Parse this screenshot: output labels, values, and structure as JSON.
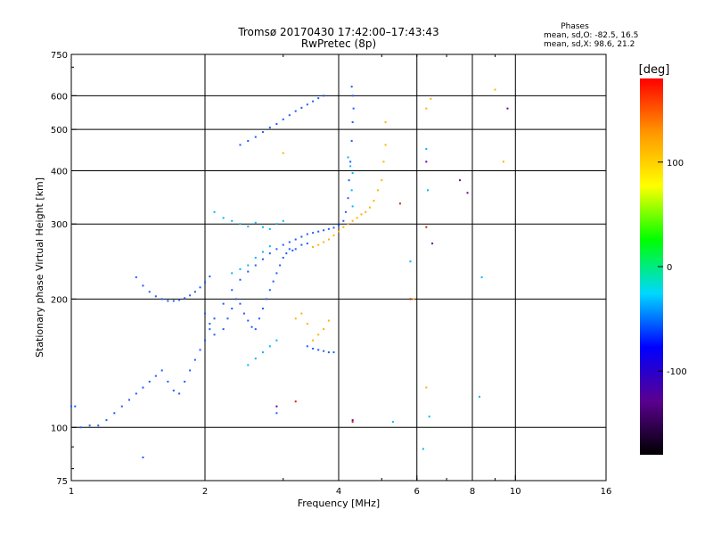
{
  "chart_data": {
    "type": "scatter",
    "title": "Tromsø 20170430 17:42:00–17:43:43",
    "subtitle": "RwPretec (8p)",
    "xlabel": "Frequency [MHz]",
    "ylabel": "Stationary phase Virtual Height [km]",
    "x_scale": "log",
    "y_scale": "log",
    "xlim": [
      1,
      16
    ],
    "ylim": [
      75,
      750
    ],
    "x_ticks": [
      1,
      2,
      4,
      6,
      8,
      10,
      16
    ],
    "y_ticks": [
      75,
      100,
      200,
      300,
      400,
      500,
      600,
      750
    ],
    "grid_x": [
      2,
      4,
      6,
      8,
      10
    ],
    "grid_y": [
      100,
      200,
      300,
      400,
      500,
      600
    ],
    "grid": true,
    "stats_header": "Phases",
    "stats_lines": [
      "mean, sd,O: -82.5, 16.5",
      "mean, sd,X:  98.6, 21.2"
    ],
    "colorbar": {
      "label": "[deg]",
      "range": [
        -180,
        180
      ],
      "ticks": [
        100,
        0,
        -100
      ],
      "colors": [
        "#000000",
        "#5a0090",
        "#0000ff",
        "#00d8ff",
        "#00ff00",
        "#ffff00",
        "#ff9600",
        "#ff0000"
      ]
    },
    "series": [
      {
        "color": "#1a5bff",
        "points": [
          [
            1.0,
            112
          ],
          [
            1.02,
            112
          ],
          [
            1.05,
            100
          ],
          [
            1.1,
            101
          ],
          [
            1.15,
            101
          ],
          [
            1.2,
            104
          ],
          [
            1.25,
            108
          ],
          [
            1.3,
            112
          ],
          [
            1.35,
            116
          ],
          [
            1.4,
            120
          ],
          [
            1.45,
            124
          ],
          [
            1.5,
            128
          ],
          [
            1.55,
            132
          ],
          [
            1.6,
            136
          ],
          [
            1.65,
            128
          ],
          [
            1.7,
            122
          ],
          [
            1.75,
            120
          ],
          [
            1.8,
            128
          ],
          [
            1.85,
            136
          ],
          [
            1.9,
            144
          ],
          [
            1.95,
            152
          ],
          [
            2.0,
            160
          ],
          [
            2.05,
            170
          ],
          [
            2.1,
            180
          ],
          [
            2.2,
            195
          ],
          [
            2.3,
            210
          ],
          [
            2.4,
            222
          ],
          [
            2.5,
            232
          ],
          [
            2.6,
            240
          ],
          [
            2.7,
            248
          ],
          [
            2.8,
            256
          ],
          [
            2.9,
            262
          ],
          [
            3.0,
            268
          ],
          [
            3.1,
            272
          ],
          [
            3.2,
            276
          ],
          [
            3.3,
            280
          ],
          [
            3.4,
            284
          ],
          [
            3.5,
            286
          ],
          [
            3.6,
            288
          ],
          [
            3.7,
            290
          ],
          [
            3.8,
            292
          ],
          [
            3.9,
            294
          ],
          [
            4.0,
            298
          ],
          [
            4.1,
            305
          ],
          [
            4.15,
            320
          ],
          [
            4.2,
            345
          ],
          [
            4.22,
            380
          ],
          [
            4.25,
            420
          ],
          [
            4.28,
            470
          ],
          [
            4.3,
            520
          ],
          [
            4.32,
            560
          ],
          [
            4.3,
            600
          ],
          [
            4.28,
            630
          ],
          [
            1.4,
            225
          ],
          [
            1.45,
            215
          ],
          [
            1.5,
            208
          ],
          [
            1.55,
            203
          ],
          [
            1.6,
            200
          ],
          [
            1.65,
            198
          ],
          [
            1.7,
            198
          ],
          [
            1.75,
            199
          ],
          [
            1.8,
            201
          ],
          [
            1.85,
            204
          ],
          [
            1.9,
            208
          ],
          [
            1.95,
            213
          ],
          [
            2.0,
            219
          ],
          [
            2.05,
            226
          ],
          [
            2.4,
            460
          ],
          [
            2.5,
            470
          ],
          [
            2.6,
            480
          ],
          [
            2.7,
            493
          ],
          [
            2.8,
            505
          ],
          [
            2.9,
            515
          ],
          [
            3.0,
            528
          ],
          [
            3.1,
            540
          ],
          [
            3.2,
            552
          ],
          [
            3.3,
            562
          ],
          [
            3.4,
            572
          ],
          [
            3.5,
            582
          ],
          [
            3.6,
            592
          ],
          [
            3.7,
            600
          ],
          [
            2.0,
            185
          ],
          [
            2.05,
            175
          ],
          [
            2.1,
            165
          ],
          [
            2.2,
            170
          ],
          [
            2.25,
            180
          ],
          [
            2.3,
            190
          ],
          [
            2.35,
            200
          ],
          [
            2.4,
            195
          ],
          [
            2.45,
            185
          ],
          [
            2.5,
            178
          ],
          [
            2.55,
            172
          ],
          [
            2.6,
            170
          ],
          [
            2.65,
            180
          ],
          [
            2.7,
            190
          ],
          [
            2.75,
            200
          ],
          [
            2.8,
            210
          ],
          [
            2.85,
            220
          ],
          [
            2.9,
            230
          ],
          [
            2.95,
            240
          ],
          [
            3.0,
            250
          ],
          [
            3.05,
            256
          ],
          [
            3.1,
            262
          ],
          [
            3.15,
            260
          ],
          [
            3.2,
            262
          ],
          [
            3.3,
            268
          ],
          [
            3.4,
            270
          ],
          [
            3.4,
            155
          ],
          [
            3.5,
            153
          ],
          [
            3.6,
            152
          ],
          [
            3.7,
            151
          ],
          [
            3.8,
            150
          ],
          [
            3.9,
            150
          ],
          [
            1.45,
            85
          ],
          [
            2.9,
            108
          ]
        ]
      },
      {
        "color": "#00b4ff",
        "points": [
          [
            2.1,
            320
          ],
          [
            2.2,
            310
          ],
          [
            2.3,
            305
          ],
          [
            2.4,
            300
          ],
          [
            2.5,
            296
          ],
          [
            2.6,
            302
          ],
          [
            2.7,
            295
          ],
          [
            2.8,
            292
          ],
          [
            2.9,
            300
          ],
          [
            3.0,
            305
          ],
          [
            4.2,
            430
          ],
          [
            4.25,
            410
          ],
          [
            4.3,
            395
          ],
          [
            4.28,
            360
          ],
          [
            4.3,
            330
          ],
          [
            2.3,
            230
          ],
          [
            2.4,
            235
          ],
          [
            2.5,
            240
          ],
          [
            2.6,
            250
          ],
          [
            2.7,
            258
          ],
          [
            2.8,
            266
          ],
          [
            2.5,
            140
          ],
          [
            2.6,
            145
          ],
          [
            2.7,
            150
          ],
          [
            2.8,
            155
          ],
          [
            2.9,
            160
          ],
          [
            6.3,
            450
          ],
          [
            6.35,
            360
          ],
          [
            5.8,
            245
          ],
          [
            8.4,
            225
          ],
          [
            8.3,
            118
          ],
          [
            6.2,
            89
          ],
          [
            5.3,
            103
          ],
          [
            6.4,
            106
          ]
        ]
      },
      {
        "color": "#ffb000",
        "points": [
          [
            3.5,
            265
          ],
          [
            3.6,
            268
          ],
          [
            3.7,
            272
          ],
          [
            3.8,
            276
          ],
          [
            3.9,
            282
          ],
          [
            4.0,
            288
          ],
          [
            4.1,
            295
          ],
          [
            4.2,
            300
          ],
          [
            4.3,
            305
          ],
          [
            4.4,
            310
          ],
          [
            4.5,
            316
          ],
          [
            4.6,
            320
          ],
          [
            4.7,
            328
          ],
          [
            4.8,
            340
          ],
          [
            4.9,
            360
          ],
          [
            5.0,
            380
          ],
          [
            5.05,
            420
          ],
          [
            5.1,
            460
          ],
          [
            5.1,
            520
          ],
          [
            3.2,
            180
          ],
          [
            3.3,
            185
          ],
          [
            3.4,
            175
          ],
          [
            3.5,
            160
          ],
          [
            3.6,
            165
          ],
          [
            3.7,
            170
          ],
          [
            3.8,
            178
          ],
          [
            6.3,
            560
          ],
          [
            6.45,
            590
          ],
          [
            9.0,
            620
          ],
          [
            9.4,
            420
          ],
          [
            5.9,
            200
          ],
          [
            6.3,
            124
          ],
          [
            3.0,
            440
          ]
        ]
      },
      {
        "color": "#6a00a0",
        "points": [
          [
            2.9,
            112
          ],
          [
            4.3,
            104
          ],
          [
            6.5,
            270
          ],
          [
            7.8,
            355
          ],
          [
            9.6,
            560
          ],
          [
            6.3,
            420
          ],
          [
            7.5,
            380
          ]
        ]
      },
      {
        "color": "#cc2200",
        "points": [
          [
            5.8,
            200
          ],
          [
            6.3,
            295
          ],
          [
            5.5,
            335
          ],
          [
            4.3,
            103
          ],
          [
            3.2,
            115
          ]
        ]
      }
    ]
  }
}
